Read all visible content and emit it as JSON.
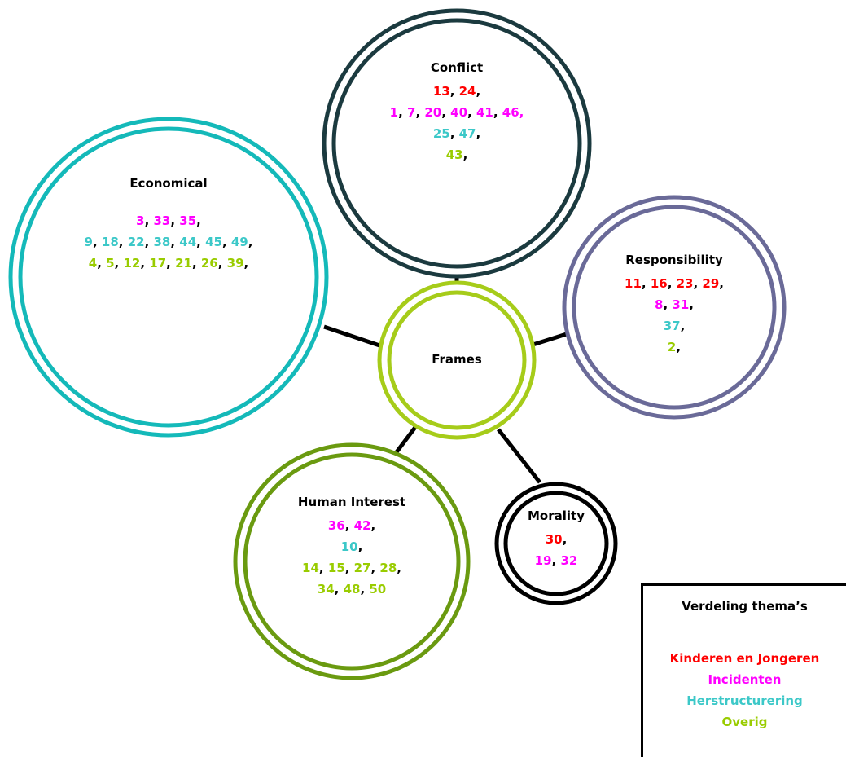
{
  "colors": {
    "kinderen": "#ff0000",
    "incidenten": "#ff00ff",
    "herstructurering": "#3cc8c8",
    "overig": "#99cc00",
    "conflict_ring": "#1b3a3f",
    "economical_ring": "#14b9b9",
    "responsibility_ring": "#6a6a98",
    "frames_ring": "#a6cc1a",
    "human_interest_ring": "#6a9a10",
    "morality_ring": "#000000",
    "connector": "#000000"
  },
  "center": {
    "title": "Frames"
  },
  "frames": [
    {
      "key": "conflict",
      "title": "Conflict",
      "rows": [
        [
          {
            "n": "13",
            "c": "kinderen"
          },
          {
            "n": "24",
            "c": "kinderen"
          }
        ],
        [
          {
            "n": "1",
            "c": "incidenten"
          },
          {
            "n": "7",
            "c": "incidenten"
          },
          {
            "n": "20",
            "c": "incidenten"
          },
          {
            "n": "40",
            "c": "incidenten"
          },
          {
            "n": "41",
            "c": "incidenten"
          },
          {
            "n": "46,",
            "c": "incidenten",
            "noTrail": true
          }
        ],
        [
          {
            "n": "25",
            "c": "herstructurering"
          },
          {
            "n": "47",
            "c": "herstructurering"
          }
        ],
        [
          {
            "n": "43",
            "c": "overig"
          }
        ]
      ]
    },
    {
      "key": "economical",
      "title": "Economical",
      "rows": [
        [
          {
            "n": "3",
            "c": "incidenten"
          },
          {
            "n": "33",
            "c": "incidenten"
          },
          {
            "n": "35",
            "c": "incidenten"
          }
        ],
        [
          {
            "n": "9",
            "c": "herstructurering"
          },
          {
            "n": "18",
            "c": "herstructurering"
          },
          {
            "n": "22",
            "c": "herstructurering"
          },
          {
            "n": "38",
            "c": "herstructurering"
          },
          {
            "n": "44",
            "c": "herstructurering"
          },
          {
            "n": "45",
            "c": "herstructurering"
          },
          {
            "n": "49",
            "c": "herstructurering"
          }
        ],
        [
          {
            "n": "4",
            "c": "overig"
          },
          {
            "n": "5",
            "c": "overig"
          },
          {
            "n": "12",
            "c": "overig"
          },
          {
            "n": "17",
            "c": "overig"
          },
          {
            "n": "21",
            "c": "overig"
          },
          {
            "n": "26",
            "c": "overig"
          },
          {
            "n": "39",
            "c": "overig"
          }
        ]
      ]
    },
    {
      "key": "responsibility",
      "title": "Responsibility",
      "rows": [
        [
          {
            "n": "11",
            "c": "kinderen"
          },
          {
            "n": "16",
            "c": "kinderen"
          },
          {
            "n": "23",
            "c": "kinderen"
          },
          {
            "n": "29",
            "c": "kinderen"
          }
        ],
        [
          {
            "n": "8",
            "c": "incidenten"
          },
          {
            "n": "31",
            "c": "incidenten"
          }
        ],
        [
          {
            "n": "37",
            "c": "herstructurering"
          }
        ],
        [
          {
            "n": "2",
            "c": "overig"
          }
        ]
      ]
    },
    {
      "key": "human_interest",
      "title": "Human Interest",
      "rows": [
        [
          {
            "n": "36",
            "c": "incidenten"
          },
          {
            "n": "42",
            "c": "incidenten"
          }
        ],
        [
          {
            "n": "10",
            "c": "herstructurering"
          }
        ],
        [
          {
            "n": "14",
            "c": "overig"
          },
          {
            "n": "15",
            "c": "overig"
          },
          {
            "n": "27",
            "c": "overig"
          },
          {
            "n": "28",
            "c": "overig"
          }
        ],
        [
          {
            "n": "34",
            "c": "overig"
          },
          {
            "n": "48",
            "c": "overig"
          },
          {
            "n": "50",
            "c": "overig",
            "noTrail": true
          }
        ]
      ]
    },
    {
      "key": "morality",
      "title": "Morality",
      "rows": [
        [
          {
            "n": "30",
            "c": "kinderen"
          }
        ],
        [
          {
            "n": "19",
            "c": "incidenten"
          },
          {
            "n": "32",
            "c": "incidenten",
            "noTrail": true
          }
        ]
      ]
    }
  ],
  "legend": {
    "title": "Verdeling thema’s",
    "items": [
      {
        "label": "Kinderen en Jongeren",
        "c": "kinderen"
      },
      {
        "label": "Incidenten",
        "c": "incidenten"
      },
      {
        "label": "Herstructurering",
        "c": "herstructurering"
      },
      {
        "label": "Overig",
        "c": "overig"
      }
    ]
  }
}
